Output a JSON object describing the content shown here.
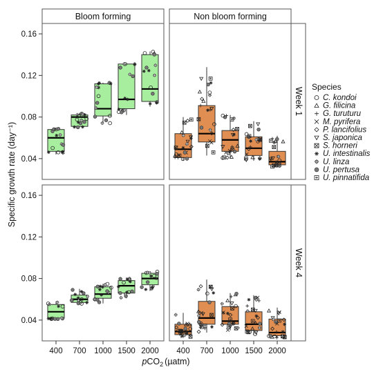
{
  "figure": {
    "y_axis_label": "Specific growth rate (day⁻¹)",
    "x_axis_label_prefix": "p",
    "x_axis_label_main": "CO",
    "x_axis_label_sub": "2",
    "x_axis_label_unit": "(µatm)",
    "legend_title": "Species",
    "colors": {
      "bloom": "#a8ee9f",
      "non_bloom": "#e08e52",
      "panel_border": "#555555",
      "strip_bg": "#ffffff"
    }
  },
  "legend": [
    {
      "label": "C. kondoi",
      "marker": "circle-open"
    },
    {
      "label": "G. filicina",
      "marker": "triangle-up-open"
    },
    {
      "label": "G. turuturu",
      "marker": "plus"
    },
    {
      "label": "M. pyrifera",
      "marker": "cross"
    },
    {
      "label": "P. lancifolius",
      "marker": "diamond-open"
    },
    {
      "label": "S. japonica",
      "marker": "triangle-down-open"
    },
    {
      "label": "S. horneri",
      "marker": "square-cross"
    },
    {
      "label": "U. intestinalis",
      "marker": "asterisk"
    },
    {
      "label": "U. linza",
      "marker": "diamond-plus"
    },
    {
      "label": "U. pertusa",
      "marker": "circle-filled"
    },
    {
      "label": "U. pinnatifida",
      "marker": "square-star"
    }
  ],
  "chart_data": {
    "type": "box",
    "x_label": "pCO2 (µatm)",
    "y_label": "Specific growth rate (day-1)",
    "categories": [
      "400",
      "700",
      "1000",
      "1500",
      "2000"
    ],
    "column_facets": [
      "Bloom  forming",
      "Non bloom forming"
    ],
    "row_facets": [
      "Week 1",
      "Week 4"
    ],
    "ylim": [
      0.02,
      0.17
    ],
    "y_ticks": [
      0.04,
      0.08,
      0.12,
      0.16
    ],
    "y_tick_labels": [
      "0.04",
      "0.08",
      "0.12",
      "0.16"
    ],
    "panels": [
      {
        "column": "Bloom  forming",
        "row": "Week 1",
        "group": "bloom",
        "boxes": [
          {
            "category": "400",
            "q1": 0.047,
            "median": 0.06,
            "q3": 0.068,
            "whisker_low": 0.044,
            "whisker_high": 0.069
          },
          {
            "category": "700",
            "q1": 0.071,
            "median": 0.08,
            "q3": 0.082,
            "whisker_low": 0.07,
            "whisker_high": 0.084
          },
          {
            "category": "1000",
            "q1": 0.081,
            "median": 0.088,
            "q3": 0.112,
            "whisker_low": 0.073,
            "whisker_high": 0.113
          },
          {
            "category": "1500",
            "q1": 0.088,
            "median": 0.097,
            "q3": 0.131,
            "whisker_low": 0.082,
            "whisker_high": 0.131
          },
          {
            "category": "2000",
            "q1": 0.095,
            "median": 0.107,
            "q3": 0.14,
            "whisker_low": 0.09,
            "whisker_high": 0.143
          }
        ]
      },
      {
        "column": "Non bloom forming",
        "row": "Week 1",
        "group": "non_bloom",
        "boxes": [
          {
            "category": "400",
            "q1": 0.041,
            "median": 0.049,
            "q3": 0.064,
            "whisker_low": 0.038,
            "whisker_high": 0.08
          },
          {
            "category": "700",
            "q1": 0.056,
            "median": 0.064,
            "q3": 0.091,
            "whisker_low": 0.043,
            "whisker_high": 0.128
          },
          {
            "category": "1000",
            "q1": 0.047,
            "median": 0.058,
            "q3": 0.067,
            "whisker_low": 0.04,
            "whisker_high": 0.082
          },
          {
            "category": "1500",
            "q1": 0.043,
            "median": 0.05,
            "q3": 0.061,
            "whisker_low": 0.038,
            "whisker_high": 0.076
          },
          {
            "category": "2000",
            "q1": 0.034,
            "median": 0.037,
            "q3": 0.047,
            "whisker_low": 0.032,
            "whisker_high": 0.062
          }
        ]
      },
      {
        "column": "Bloom  forming",
        "row": "Week 4",
        "group": "bloom",
        "boxes": [
          {
            "category": "400",
            "q1": 0.042,
            "median": 0.048,
            "q3": 0.055,
            "whisker_low": 0.04,
            "whisker_high": 0.058
          },
          {
            "category": "700",
            "q1": 0.057,
            "median": 0.06,
            "q3": 0.064,
            "whisker_low": 0.055,
            "whisker_high": 0.07
          },
          {
            "category": "1000",
            "q1": 0.061,
            "median": 0.065,
            "q3": 0.072,
            "whisker_low": 0.056,
            "whisker_high": 0.075
          },
          {
            "category": "1500",
            "q1": 0.066,
            "median": 0.073,
            "q3": 0.078,
            "whisker_low": 0.061,
            "whisker_high": 0.081
          },
          {
            "category": "2000",
            "q1": 0.074,
            "median": 0.08,
            "q3": 0.085,
            "whisker_low": 0.068,
            "whisker_high": 0.087
          }
        ]
      },
      {
        "column": "Non bloom forming",
        "row": "Week 4",
        "group": "non_bloom",
        "boxes": [
          {
            "category": "400",
            "q1": 0.026,
            "median": 0.029,
            "q3": 0.036,
            "whisker_low": 0.024,
            "whisker_high": 0.047
          },
          {
            "category": "700",
            "q1": 0.036,
            "median": 0.042,
            "q3": 0.058,
            "whisker_low": 0.028,
            "whisker_high": 0.079
          },
          {
            "category": "1000",
            "q1": 0.036,
            "median": 0.039,
            "q3": 0.053,
            "whisker_low": 0.03,
            "whisker_high": 0.066
          },
          {
            "category": "1500",
            "q1": 0.03,
            "median": 0.036,
            "q3": 0.048,
            "whisker_low": 0.026,
            "whisker_high": 0.064
          },
          {
            "category": "2000",
            "q1": 0.025,
            "median": 0.028,
            "q3": 0.041,
            "whisker_low": 0.023,
            "whisker_high": 0.052
          }
        ]
      }
    ]
  }
}
